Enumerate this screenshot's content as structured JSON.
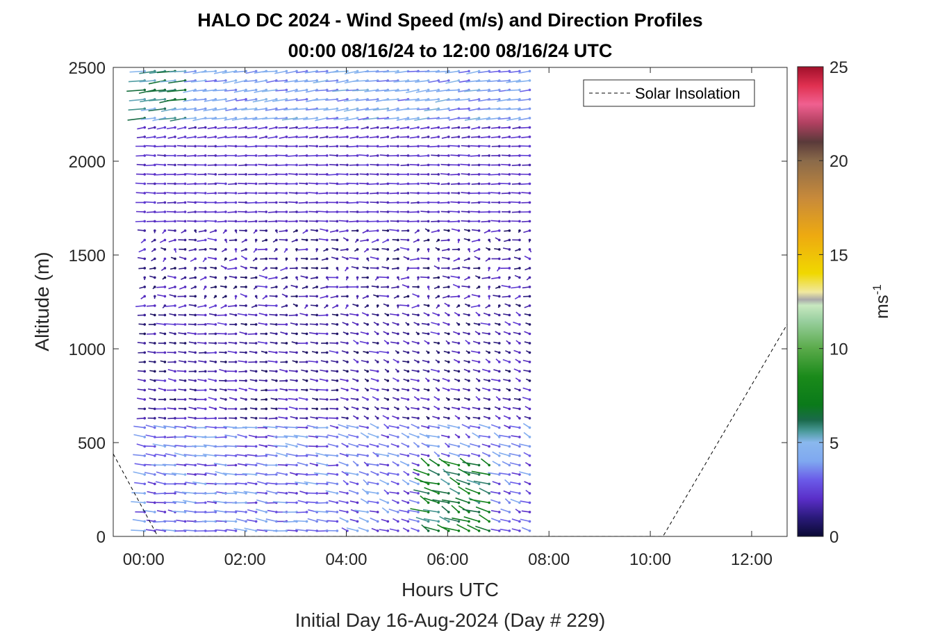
{
  "chart_data": {
    "type": "quiver",
    "title": "HALO DC 2024 - Wind Speed (m/s) and Direction Profiles",
    "subtitle": "00:00 08/16/24 to 12:00 08/16/24  UTC",
    "xlabel": "Hours UTC",
    "xlabel2": "Initial Day 16-Aug-2024 (Day # 229)",
    "ylabel": "Altitude (m)",
    "xlim_hours": [
      -0.6,
      12.7
    ],
    "ylim": [
      0,
      2500
    ],
    "x_ticks": [
      {
        "value": 0,
        "label": "00:00"
      },
      {
        "value": 2,
        "label": "02:00"
      },
      {
        "value": 4,
        "label": "04:00"
      },
      {
        "value": 6,
        "label": "06:00"
      },
      {
        "value": 8,
        "label": "08:00"
      },
      {
        "value": 10,
        "label": "10:00"
      },
      {
        "value": 12,
        "label": "12:00"
      }
    ],
    "y_ticks": [
      {
        "value": 0,
        "label": "0"
      },
      {
        "value": 500,
        "label": "500"
      },
      {
        "value": 1000,
        "label": "1000"
      },
      {
        "value": 1500,
        "label": "1500"
      },
      {
        "value": 2000,
        "label": "2000"
      },
      {
        "value": 2500,
        "label": "2500"
      }
    ],
    "colorbar": {
      "label_base": "ms",
      "label_exp": "-1",
      "range": [
        0,
        25
      ],
      "ticks": [
        {
          "value": 0,
          "label": "0"
        },
        {
          "value": 5,
          "label": "5"
        },
        {
          "value": 10,
          "label": "10"
        },
        {
          "value": 15,
          "label": "15"
        },
        {
          "value": 20,
          "label": "20"
        },
        {
          "value": 25,
          "label": "25"
        }
      ],
      "stops": [
        {
          "v": 0,
          "c": "#0a0a33"
        },
        {
          "v": 1,
          "c": "#2a1a7a"
        },
        {
          "v": 2,
          "c": "#5a2ec8"
        },
        {
          "v": 3,
          "c": "#6a5ae8"
        },
        {
          "v": 4,
          "c": "#7fa8f0"
        },
        {
          "v": 5,
          "c": "#8ab8ee"
        },
        {
          "v": 5.6,
          "c": "#4a9a9a"
        },
        {
          "v": 6.2,
          "c": "#1a6a4a"
        },
        {
          "v": 7,
          "c": "#0a7a1a"
        },
        {
          "v": 8.5,
          "c": "#1a8a1a"
        },
        {
          "v": 10,
          "c": "#5aaa4a"
        },
        {
          "v": 11.5,
          "c": "#9ad0a0"
        },
        {
          "v": 12.3,
          "c": "#c8e8c0"
        },
        {
          "v": 12.6,
          "c": "#aaaaaa"
        },
        {
          "v": 13,
          "c": "#f0e8a0"
        },
        {
          "v": 14,
          "c": "#f0d800"
        },
        {
          "v": 16,
          "c": "#eeaa10"
        },
        {
          "v": 18,
          "c": "#c88a3a"
        },
        {
          "v": 20,
          "c": "#8a6a4a"
        },
        {
          "v": 21,
          "c": "#5a3a3a"
        },
        {
          "v": 22,
          "c": "#b04060"
        },
        {
          "v": 23,
          "c": "#f06090"
        },
        {
          "v": 24,
          "c": "#e03050"
        },
        {
          "v": 25,
          "c": "#a0102a"
        }
      ]
    },
    "series": [
      {
        "name": "Solar Insolation",
        "style": "dashed",
        "color": "#000000",
        "x_hours": [
          -0.6,
          0.28,
          10.25,
          12.7
        ],
        "y_m": [
          440,
          0,
          0,
          1130
        ]
      }
    ],
    "quiver_grid": {
      "time_range_hours": [
        0.02,
        7.8
      ],
      "time_step_hours": 0.2,
      "altitude_range_m": [
        30,
        2480
      ],
      "altitude_step_m": 50
    }
  }
}
